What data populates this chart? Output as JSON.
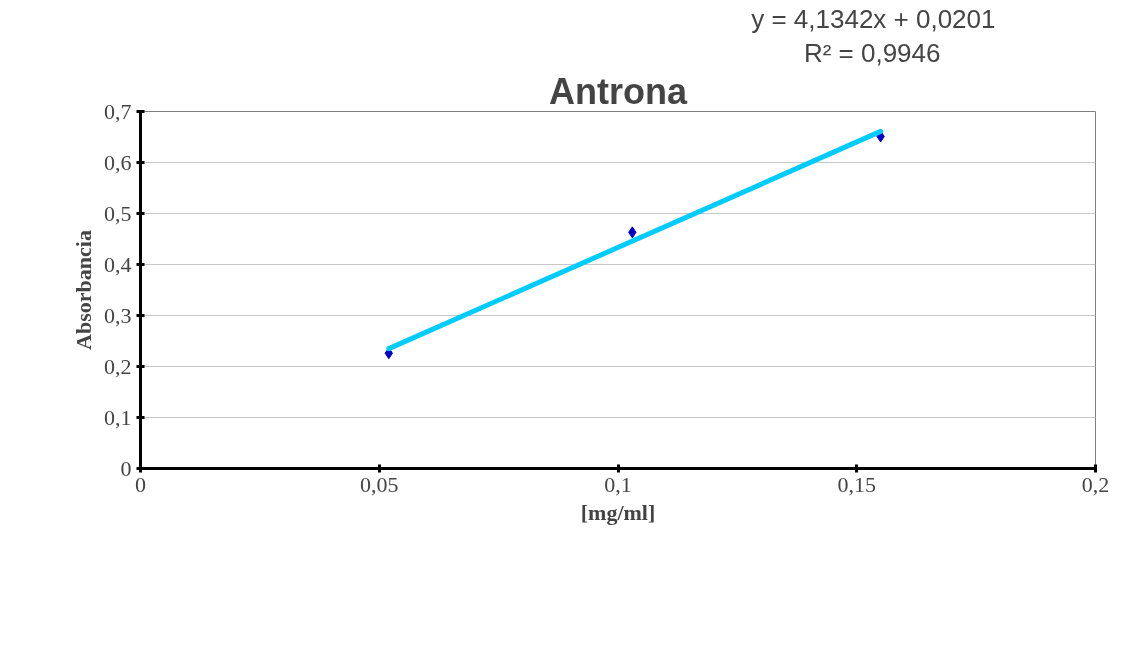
{
  "chart_data": {
    "type": "scatter",
    "title": "Antrona",
    "xlabel": "[mg/ml]",
    "ylabel": "Absorbancia",
    "annotations": [
      "y = 4,1342x + 0,0201",
      "R² = 0,9946"
    ],
    "x": [
      0.052,
      0.103,
      0.155
    ],
    "series": [
      {
        "color": "#0000cc",
        "values": [
          0.226,
          0.463,
          0.651
        ]
      },
      {
        "type": "line",
        "marker": "none",
        "color": "#00ccff",
        "x": [
          0.052,
          0.155
        ],
        "values": [
          0.235,
          0.661
        ]
      }
    ],
    "xlim": [
      0,
      0.2
    ],
    "ylim": [
      0,
      0.7
    ],
    "xticks": [
      0,
      {
        "value": 0.05,
        "label": "0,05"
      },
      {
        "value": 0.1,
        "label": "0,1"
      },
      {
        "value": 0.15,
        "label": "0,15"
      },
      {
        "value": 0.2,
        "label": "0,2"
      }
    ],
    "yticks": [
      0,
      {
        "value": 0.1,
        "label": "0,1"
      },
      {
        "value": 0.2,
        "label": "0,2"
      },
      {
        "value": 0.3,
        "label": "0,3"
      },
      {
        "value": 0.4,
        "label": "0,4"
      },
      {
        "value": 0.5,
        "label": "0,5"
      },
      {
        "value": 0.6,
        "label": "0,6"
      },
      {
        "value": 0.7,
        "label": "0,7"
      }
    ],
    "grid": "y",
    "marker": "diamond"
  }
}
